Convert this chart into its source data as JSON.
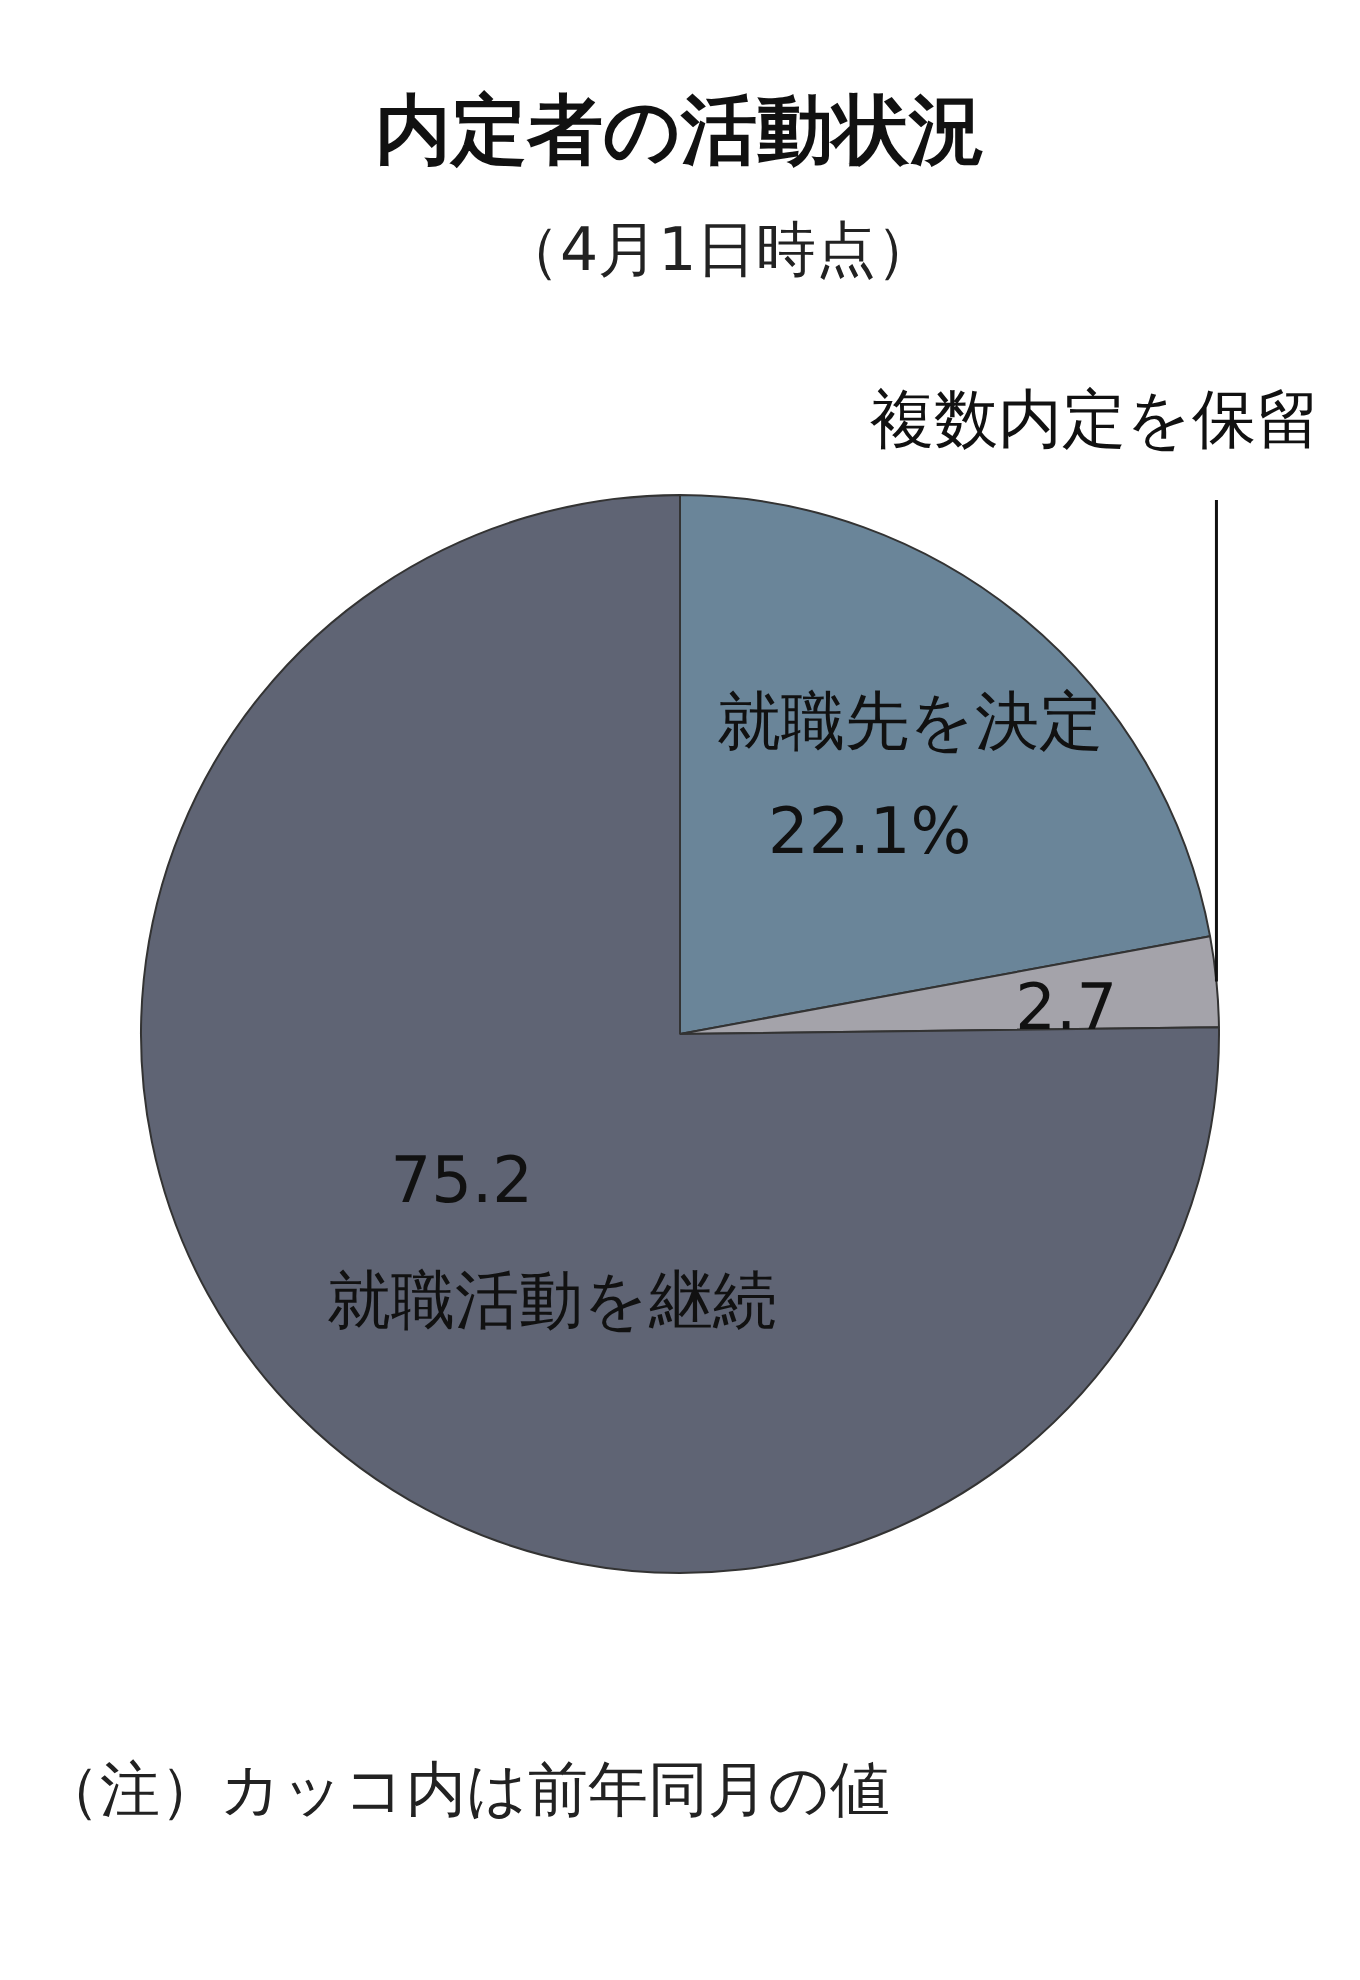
{
  "chart_data": {
    "type": "pie",
    "title": "内定者の活動状況",
    "subtitle": "（4月1日時点）",
    "categories": [
      "就職先を決定",
      "複数内定を保留",
      "就職活動を継続"
    ],
    "values": [
      22.1,
      2.7,
      75.2
    ],
    "value_labels": [
      "22.1%",
      "2.7",
      "75.2"
    ],
    "colors": [
      "#6a8599",
      "#a4a3aa",
      "#5f6474"
    ],
    "annotations": [
      "（注）カッコ内は前年同月の値"
    ]
  }
}
